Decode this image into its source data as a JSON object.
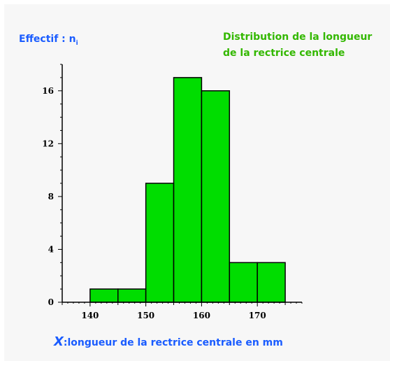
{
  "chart_data": {
    "type": "bar",
    "title": "Distribution de la longueur de la rectrice centrale",
    "ylabel": "Effectif : n",
    "ylabel_subscript": "i",
    "xlabel_var": "X",
    "xlabel": ":longueur de la rectrice centrale en mm",
    "bins": [
      {
        "start": 140,
        "end": 145,
        "value": 1
      },
      {
        "start": 145,
        "end": 150,
        "value": 1
      },
      {
        "start": 150,
        "end": 155,
        "value": 9
      },
      {
        "start": 155,
        "end": 160,
        "value": 17
      },
      {
        "start": 160,
        "end": 165,
        "value": 16
      },
      {
        "start": 165,
        "end": 170,
        "value": 3
      },
      {
        "start": 170,
        "end": 175,
        "value": 3
      }
    ],
    "xlim": [
      135,
      178
    ],
    "ylim": [
      0,
      18
    ],
    "xticks": [
      140,
      150,
      160,
      170
    ],
    "yticks": [
      0,
      4,
      8,
      12,
      16
    ],
    "grid": false,
    "bar_color": "#00dd00",
    "edge_color": "#000000"
  }
}
